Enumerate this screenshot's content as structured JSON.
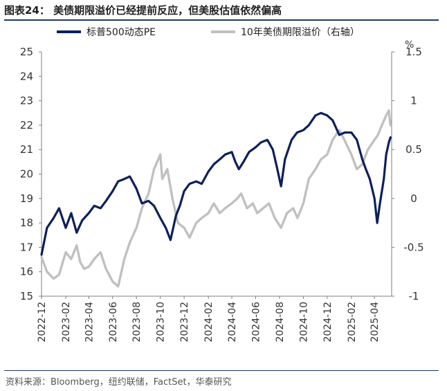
{
  "title": "图表24：  美债期限溢价已经提前反应，但美股估值依然偏高",
  "source": "资料来源：Bloomberg，纽约联储，FactSet，华泰研究",
  "colors": {
    "pe": "#0d1f5c",
    "tp": "#c0c0c0",
    "rule": "#1f3864"
  },
  "chart_data": {
    "type": "line",
    "legend_position": "top",
    "grid": false,
    "x_ticks": [
      "2022-12",
      "2023-02",
      "2023-04",
      "2023-06",
      "2023-08",
      "2023-10",
      "2023-12",
      "2024-02",
      "2024-04",
      "2024-06",
      "2024-08",
      "2024-10",
      "2024-12",
      "2025-02",
      "2025-04"
    ],
    "y_left": {
      "min": 15,
      "max": 25,
      "ticks": [
        "15",
        "16",
        "17",
        "18",
        "19",
        "20",
        "21",
        "22",
        "23",
        "24",
        "25"
      ]
    },
    "y_right": {
      "min": -1,
      "max": 1.5,
      "unit": "%",
      "ticks": [
        "-1",
        "-0.5",
        "0",
        "0.5",
        "1",
        "1.5"
      ]
    },
    "series": [
      {
        "name": "标普500动态PE",
        "axis": "left",
        "x": [
          "2022-12-01",
          "2022-12-15",
          "2023-01-01",
          "2023-01-15",
          "2023-02-01",
          "2023-02-15",
          "2023-03-01",
          "2023-03-15",
          "2023-04-01",
          "2023-04-15",
          "2023-05-01",
          "2023-05-15",
          "2023-06-01",
          "2023-06-15",
          "2023-07-01",
          "2023-07-15",
          "2023-08-01",
          "2023-08-15",
          "2023-09-01",
          "2023-09-15",
          "2023-10-01",
          "2023-10-15",
          "2023-10-27",
          "2023-11-10",
          "2023-11-20",
          "2023-12-01",
          "2023-12-15",
          "2024-01-01",
          "2024-01-15",
          "2024-02-01",
          "2024-02-15",
          "2024-03-01",
          "2024-03-15",
          "2024-04-01",
          "2024-04-10",
          "2024-04-19",
          "2024-05-01",
          "2024-05-15",
          "2024-06-01",
          "2024-06-15",
          "2024-07-01",
          "2024-07-15",
          "2024-07-25",
          "2024-08-05",
          "2024-08-15",
          "2024-09-01",
          "2024-09-15",
          "2024-10-01",
          "2024-10-15",
          "2024-11-01",
          "2024-11-15",
          "2024-12-01",
          "2024-12-15",
          "2025-01-01",
          "2025-01-15",
          "2025-02-01",
          "2025-02-15",
          "2025-03-01",
          "2025-03-10",
          "2025-03-20",
          "2025-04-01",
          "2025-04-08",
          "2025-04-15",
          "2025-04-25",
          "2025-05-01",
          "2025-05-08",
          "2025-05-12"
        ],
        "values": [
          16.7,
          17.8,
          18.2,
          18.6,
          17.8,
          18.4,
          17.6,
          18.1,
          18.4,
          18.7,
          18.6,
          18.9,
          19.3,
          19.7,
          19.8,
          19.9,
          19.4,
          18.8,
          18.9,
          18.7,
          18.2,
          17.8,
          17.3,
          18.3,
          18.7,
          19.3,
          19.6,
          19.7,
          19.6,
          20.1,
          20.4,
          20.6,
          20.8,
          20.9,
          20.5,
          20.2,
          20.5,
          20.9,
          21.1,
          21.3,
          21.4,
          21.0,
          20.3,
          19.5,
          20.6,
          21.4,
          21.7,
          21.8,
          22.0,
          22.4,
          22.5,
          22.4,
          22.2,
          21.6,
          21.7,
          21.7,
          21.4,
          20.6,
          20.2,
          19.8,
          19.0,
          18.0,
          18.8,
          19.8,
          20.8,
          21.3,
          21.5
        ]
      },
      {
        "name": "10年美债期限溢价（右轴）",
        "axis": "right",
        "x": [
          "2022-12-01",
          "2022-12-15",
          "2023-01-01",
          "2023-01-15",
          "2023-02-01",
          "2023-02-15",
          "2023-03-01",
          "2023-03-10",
          "2023-03-20",
          "2023-04-01",
          "2023-04-15",
          "2023-05-01",
          "2023-05-15",
          "2023-06-01",
          "2023-06-15",
          "2023-07-01",
          "2023-07-15",
          "2023-08-01",
          "2023-08-15",
          "2023-09-01",
          "2023-09-15",
          "2023-10-01",
          "2023-10-06",
          "2023-10-19",
          "2023-11-01",
          "2023-11-15",
          "2023-12-01",
          "2023-12-15",
          "2024-01-01",
          "2024-01-15",
          "2024-02-01",
          "2024-02-15",
          "2024-03-01",
          "2024-03-15",
          "2024-04-01",
          "2024-04-15",
          "2024-04-25",
          "2024-05-10",
          "2024-05-25",
          "2024-06-05",
          "2024-06-20",
          "2024-07-05",
          "2024-07-20",
          "2024-08-05",
          "2024-08-20",
          "2024-09-05",
          "2024-09-16",
          "2024-10-01",
          "2024-10-15",
          "2024-11-01",
          "2024-11-15",
          "2024-12-01",
          "2024-12-15",
          "2025-01-01",
          "2025-01-14",
          "2025-02-01",
          "2025-02-15",
          "2025-03-01",
          "2025-03-15",
          "2025-04-01",
          "2025-04-10",
          "2025-04-20",
          "2025-05-01",
          "2025-05-08",
          "2025-05-12"
        ],
        "values": [
          -0.6,
          -0.75,
          -0.82,
          -0.78,
          -0.55,
          -0.62,
          -0.48,
          -0.65,
          -0.72,
          -0.7,
          -0.62,
          -0.55,
          -0.72,
          -0.85,
          -0.9,
          -0.62,
          -0.45,
          -0.3,
          -0.1,
          0.05,
          0.3,
          0.45,
          0.2,
          0.3,
          0.0,
          -0.25,
          -0.3,
          -0.4,
          -0.25,
          -0.2,
          -0.15,
          -0.05,
          -0.15,
          -0.1,
          -0.05,
          0.0,
          0.05,
          -0.1,
          -0.05,
          -0.15,
          -0.1,
          -0.05,
          -0.2,
          -0.3,
          -0.15,
          -0.1,
          -0.2,
          -0.05,
          0.2,
          0.3,
          0.4,
          0.45,
          0.6,
          0.7,
          0.6,
          0.45,
          0.3,
          0.35,
          0.5,
          0.6,
          0.65,
          0.75,
          0.85,
          0.9,
          0.75
        ]
      }
    ]
  }
}
